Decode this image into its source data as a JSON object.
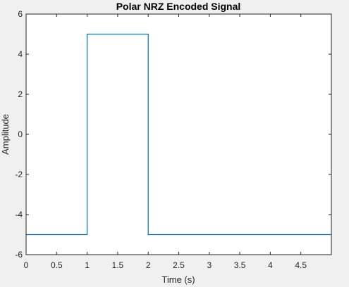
{
  "chart_data": {
    "type": "line",
    "title": "Polar NRZ Encoded Signal",
    "xlabel": "Time (s)",
    "ylabel": "Amplitude",
    "xlim": [
      0,
      5
    ],
    "ylim": [
      -6,
      6
    ],
    "xticks": [
      0,
      0.5,
      1,
      1.5,
      2,
      2.5,
      3,
      3.5,
      4,
      4.5
    ],
    "xtick_labels": [
      "0",
      "0.5",
      "1",
      "1.5",
      "2",
      "2.5",
      "3",
      "3.5",
      "4",
      "4.5"
    ],
    "yticks": [
      -6,
      -4,
      -2,
      0,
      2,
      4,
      6
    ],
    "ytick_labels": [
      "-6",
      "-4",
      "-2",
      "0",
      "2",
      "4",
      "6"
    ],
    "grid": false,
    "series": [
      {
        "x": [
          0,
          1,
          1,
          2,
          2,
          5
        ],
        "y": [
          -5,
          -5,
          5,
          5,
          -5,
          -5
        ],
        "color": "#0072BD"
      }
    ]
  }
}
